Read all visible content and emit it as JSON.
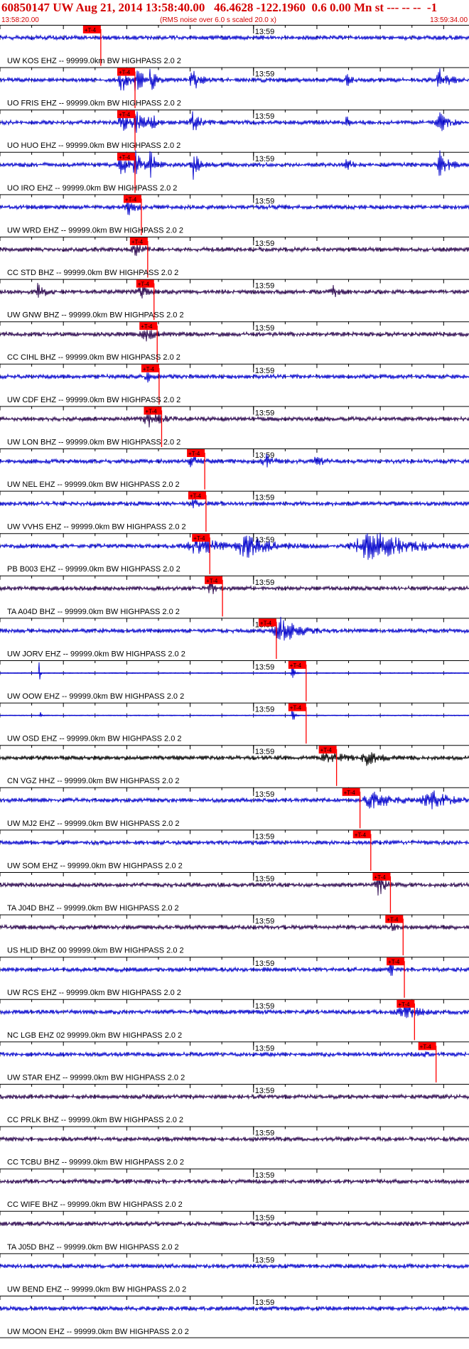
{
  "header": {
    "title": "60850147 UW Aug 21, 2014 13:58:40.00   46.4628 -122.1960  0.6 0.00 Mn st --- -- --  -1",
    "start_time": "13:58:20.00",
    "note": "(RMS noise over 6.0 s scaled 20.0 x)",
    "end_time": "13:59:34.00"
  },
  "chart_data": {
    "type": "line",
    "title": "60850147 UW Aug 21, 2014 13:58:40.00   46.4628 -122.1960  0.6 0.00 Mn st --- -- --  -1",
    "x_unit": "s after 13:58:20.00",
    "xlim": [
      0,
      74
    ],
    "minute_label": "13:59",
    "minute_mark_s": 40,
    "tick_step_s": 5,
    "pick_label": "+T-4",
    "colors": {
      "blue": "#0000cc",
      "navy": "#26004a",
      "black": "#000000",
      "pick": "#ff0000",
      "text": "#000000"
    },
    "stations": [
      {
        "label": "UW KOS EHZ -- 99999.0km BW  HIGHPASS  2.0  2",
        "color": "blue",
        "pick_s": 13.1,
        "bursts": []
      },
      {
        "label": "UO FRIS EHZ -- 99999.0km BW  HIGHPASS  2.0  2",
        "color": "blue",
        "pick_s": 18.5,
        "bursts": [
          [
            19.2,
            1.2,
            1.0
          ],
          [
            21.5,
            1.5,
            1.0
          ],
          [
            23.8,
            1.0,
            1.0
          ],
          [
            30.5,
            1.2,
            1.0
          ],
          [
            54.8,
            0.8,
            0.4
          ],
          [
            69.5,
            1.5,
            0.9
          ]
        ]
      },
      {
        "label": "UO HUO EHZ -- 99999.0km BW  HIGHPASS  2.0  2",
        "color": "blue",
        "pick_s": 18.5,
        "bursts": [
          [
            19.2,
            1.2,
            1.0
          ],
          [
            21.5,
            1.5,
            1.0
          ],
          [
            23.8,
            1.0,
            1.0
          ],
          [
            30.5,
            1.2,
            1.0
          ],
          [
            54.8,
            0.8,
            0.4
          ],
          [
            69.5,
            1.5,
            0.7
          ]
        ]
      },
      {
        "label": "UO IRO EHZ -- 99999.0km BW  HIGHPASS  2.0  2",
        "color": "blue",
        "pick_s": 18.5,
        "bursts": [
          [
            19.2,
            1.2,
            1.0
          ],
          [
            21.5,
            1.5,
            1.0
          ],
          [
            23.8,
            1.0,
            1.0
          ],
          [
            30.5,
            1.2,
            1.0
          ],
          [
            54.8,
            0.8,
            0.5
          ],
          [
            69.5,
            1.5,
            1.0
          ]
        ]
      },
      {
        "label": "UW WRD EHZ -- 99999.0km BW  HIGHPASS  2.0  2",
        "color": "blue",
        "pick_s": 19.5,
        "bursts": [
          [
            20.3,
            1.5,
            0.5
          ]
        ]
      },
      {
        "label": "CC STD BHZ -- 99999.0km BW  HIGHPASS  2.0  2",
        "color": "navy",
        "pick_s": 20.5,
        "bursts": [
          [
            21.5,
            2.0,
            0.4
          ]
        ]
      },
      {
        "label": "UW GNW BHZ -- 99999.0km BW  HIGHPASS  2.0  2",
        "color": "navy",
        "pick_s": 21.5,
        "bursts": [
          [
            6.0,
            1.5,
            0.5
          ],
          [
            22.5,
            2.0,
            0.4
          ],
          [
            52.5,
            1.0,
            0.6
          ]
        ]
      },
      {
        "label": "CC CIHL BHZ -- 99999.0km BW  HIGHPASS  2.0  2",
        "color": "navy",
        "pick_s": 22.0,
        "bursts": [
          [
            23.0,
            2.0,
            0.4
          ]
        ]
      },
      {
        "label": "UW CDF EHZ -- 99999.0km BW  HIGHPASS  2.0  2",
        "color": "blue",
        "pick_s": 22.3,
        "bursts": [
          [
            23.3,
            1.5,
            0.3
          ]
        ]
      },
      {
        "label": "UW LON BHZ -- 99999.0km BW  HIGHPASS  2.0  2",
        "color": "navy",
        "pick_s": 22.7,
        "bursts": [
          [
            23.7,
            2.5,
            0.5
          ]
        ]
      },
      {
        "label": "UW NEL EHZ -- 99999.0km BW  HIGHPASS  2.0  2",
        "color": "blue",
        "pick_s": 29.5,
        "bursts": [
          [
            30.3,
            1.5,
            0.4
          ],
          [
            42.0,
            1.5,
            0.4
          ],
          [
            50.0,
            1.5,
            0.3
          ]
        ]
      },
      {
        "label": "UW VVHS EHZ -- 99999.0km BW  HIGHPASS  2.0  2",
        "color": "blue",
        "pick_s": 29.7,
        "bursts": [
          [
            30.5,
            1.0,
            0.4
          ]
        ]
      },
      {
        "label": "PB B003 EHZ -- 99999.0km BW  HIGHPASS  2.0  2",
        "color": "blue",
        "pick_s": 30.3,
        "bursts": [
          [
            31.5,
            4.0,
            0.7
          ],
          [
            39.0,
            4.5,
            0.8
          ],
          [
            59.0,
            8.0,
            1.0
          ]
        ]
      },
      {
        "label": "TA A04D BHZ -- 99999.0km BW  HIGHPASS  2.0  2",
        "color": "navy",
        "pick_s": 32.3,
        "bursts": [
          [
            33.2,
            0.6,
            0.9
          ]
        ]
      },
      {
        "label": "UW JORV EHZ -- 99999.0km BW  HIGHPASS  2.0  2",
        "color": "blue",
        "pick_s": 40.8,
        "bursts": [
          [
            16.0,
            0.3,
            0.6
          ],
          [
            44.5,
            3.0,
            1.0
          ]
        ]
      },
      {
        "label": "UW OOW EHZ -- 99999.0km BW  HIGHPASS  2.0  2",
        "color": "blue",
        "pick_s": 45.5,
        "flat": true,
        "bursts": [
          [
            6.2,
            0.2,
            1.0
          ],
          [
            46.1,
            0.4,
            1.0
          ]
        ]
      },
      {
        "label": "UW OSD EHZ -- 99999.0km BW  HIGHPASS  2.0  2",
        "color": "blue",
        "pick_s": 45.5,
        "flat": true,
        "bursts": [
          [
            6.3,
            0.2,
            0.7
          ],
          [
            46.1,
            0.4,
            1.0
          ]
        ]
      },
      {
        "label": "CN VGZ HHZ -- 99999.0km BW  HIGHPASS  2.0  2",
        "color": "black",
        "pick_s": 50.3,
        "bursts": [
          [
            52.0,
            3.0,
            0.4
          ],
          [
            58.0,
            2.5,
            0.5
          ]
        ]
      },
      {
        "label": "UW MJ2 EHZ -- 99999.0km BW  HIGHPASS  2.0  2",
        "color": "blue",
        "pick_s": 54.0,
        "bursts": [
          [
            59.0,
            4.0,
            0.6
          ],
          [
            68.0,
            3.5,
            0.7
          ]
        ]
      },
      {
        "label": "UW SOM EHZ -- 99999.0km BW  HIGHPASS  2.0  2",
        "color": "blue",
        "pick_s": 55.7,
        "bursts": []
      },
      {
        "label": "TA J04D BHZ -- 99999.0km BW  HIGHPASS  2.0  2",
        "color": "navy",
        "pick_s": 58.8,
        "bursts": [
          [
            59.8,
            1.5,
            0.7
          ]
        ]
      },
      {
        "label": "US HLID BHZ 00 99999.0km BW  HIGHPASS  2.0  2",
        "color": "navy",
        "pick_s": 60.8,
        "bursts": [
          [
            61.8,
            0.6,
            0.3
          ]
        ]
      },
      {
        "label": "UW RCS EHZ -- 99999.0km BW  HIGHPASS  2.0  2",
        "color": "blue",
        "pick_s": 61.0,
        "bursts": [
          [
            61.6,
            0.4,
            1.0
          ]
        ]
      },
      {
        "label": "NC LGB EHZ 02 99999.0km BW  HIGHPASS  2.0  2",
        "color": "blue",
        "pick_s": 62.6,
        "bursts": [
          [
            63.8,
            2.5,
            0.6
          ]
        ]
      },
      {
        "label": "UW STAR EHZ -- 99999.0km BW  HIGHPASS  2.0  2",
        "color": "blue",
        "pick_s": 66.0,
        "bursts": [
          [
            67.0,
            0.4,
            0.3
          ]
        ]
      },
      {
        "label": "CC PRLK BHZ -- 99999.0km BW  HIGHPASS  2.0  2",
        "color": "navy",
        "pick_s": null,
        "bursts": []
      },
      {
        "label": "CC TCBU BHZ -- 99999.0km BW  HIGHPASS  2.0  2",
        "color": "navy",
        "pick_s": null,
        "bursts": []
      },
      {
        "label": "CC WIFE BHZ -- 99999.0km BW  HIGHPASS  2.0  2",
        "color": "navy",
        "pick_s": null,
        "bursts": []
      },
      {
        "label": "TA J05D BHZ -- 99999.0km BW  HIGHPASS  2.0  2",
        "color": "navy",
        "pick_s": null,
        "bursts": []
      },
      {
        "label": "UW BEND EHZ -- 99999.0km BW  HIGHPASS  2.0  2",
        "color": "blue",
        "pick_s": null,
        "bursts": []
      },
      {
        "label": "UW MOON EHZ -- 99999.0km BW  HIGHPASS  2.0  2",
        "color": "blue",
        "pick_s": null,
        "bursts": []
      }
    ]
  }
}
